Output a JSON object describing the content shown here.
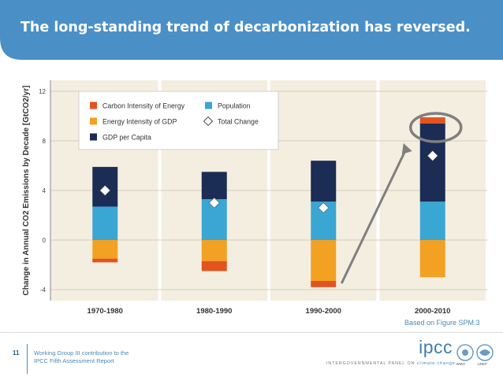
{
  "slide": {
    "title": "The long-standing trend of decarbonization has reversed.",
    "page_number": "11",
    "footer_line1": "Working Group III contribution to the",
    "footer_line2": "IPCC Fifth Assessment Report",
    "source_note": "Based on Figure SPM.3"
  },
  "logo": {
    "name": "ipcc",
    "panel_text": "INTERGOVERNMENTAL PANEL ON",
    "panel_text_highlight": "climate change",
    "emblem1": "WMO",
    "emblem2": "UNEP"
  },
  "colors": {
    "header": "#4a90c7",
    "carbon_intensity": "#e2531f",
    "energy_intensity": "#f2a123",
    "gdp_per_capita": "#1b2c55",
    "population": "#3aa6d4",
    "plot_bg": "#f4eee0",
    "highlight": "#7f7f7f"
  },
  "chart_data": {
    "type": "bar",
    "stacked": true,
    "ylabel": "Change in Annual CO2 Emissions by Decade [GtCO2/yr]",
    "ylim": [
      -5,
      13
    ],
    "yticks": [
      -4,
      0,
      4,
      8,
      12
    ],
    "categories": [
      "1970-1980",
      "1980-1990",
      "1990-2000",
      "2000-2010"
    ],
    "series": [
      {
        "name": "Carbon Intensity of Energy",
        "values": [
          -0.3,
          -0.8,
          -0.5,
          0.5
        ]
      },
      {
        "name": "Energy Intensity of GDP",
        "values": [
          -1.5,
          -1.7,
          -3.3,
          -3.0
        ]
      },
      {
        "name": "GDP per Capita",
        "values": [
          3.2,
          2.2,
          3.3,
          6.3
        ]
      },
      {
        "name": "Population",
        "values": [
          2.7,
          3.3,
          3.1,
          3.1
        ]
      }
    ],
    "total_change": [
      4.0,
      3.0,
      2.6,
      6.8
    ],
    "total_change_label": "Total Change",
    "legend": [
      "Carbon Intensity of Energy",
      "Population",
      "Energy Intensity of GDP",
      "Total Change",
      "GDP per Capita"
    ]
  }
}
